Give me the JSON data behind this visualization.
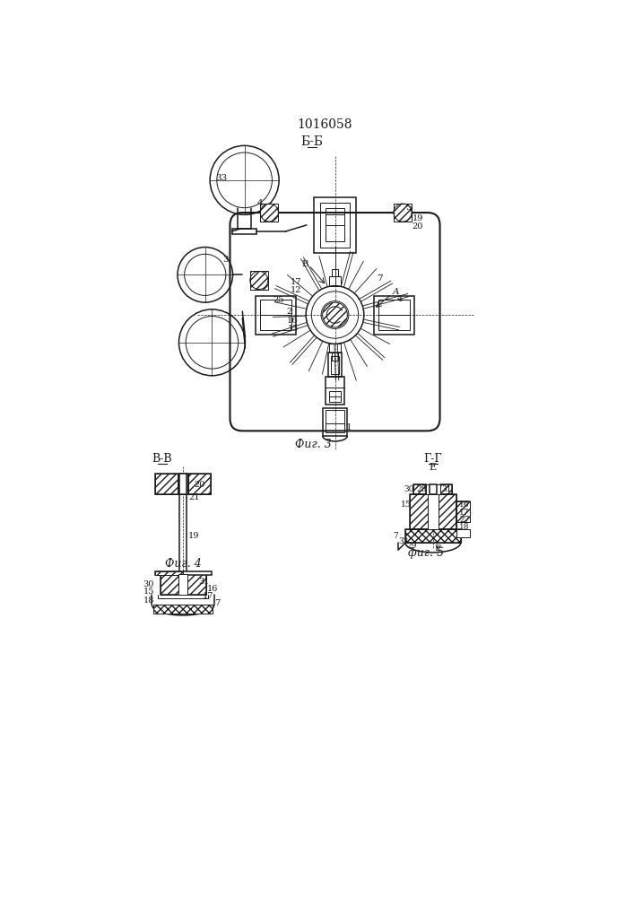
{
  "title": "1016058",
  "bg_color": "#ffffff",
  "line_color": "#1a1a1a",
  "fig3_label": "Фиг. 3",
  "fig4_label": "Фиг. 4",
  "fig5_label": "фиг. 5",
  "section_bb": "Б-Б",
  "section_vv": "В-В",
  "section_gg": "Г-Г",
  "section_e": "Е"
}
